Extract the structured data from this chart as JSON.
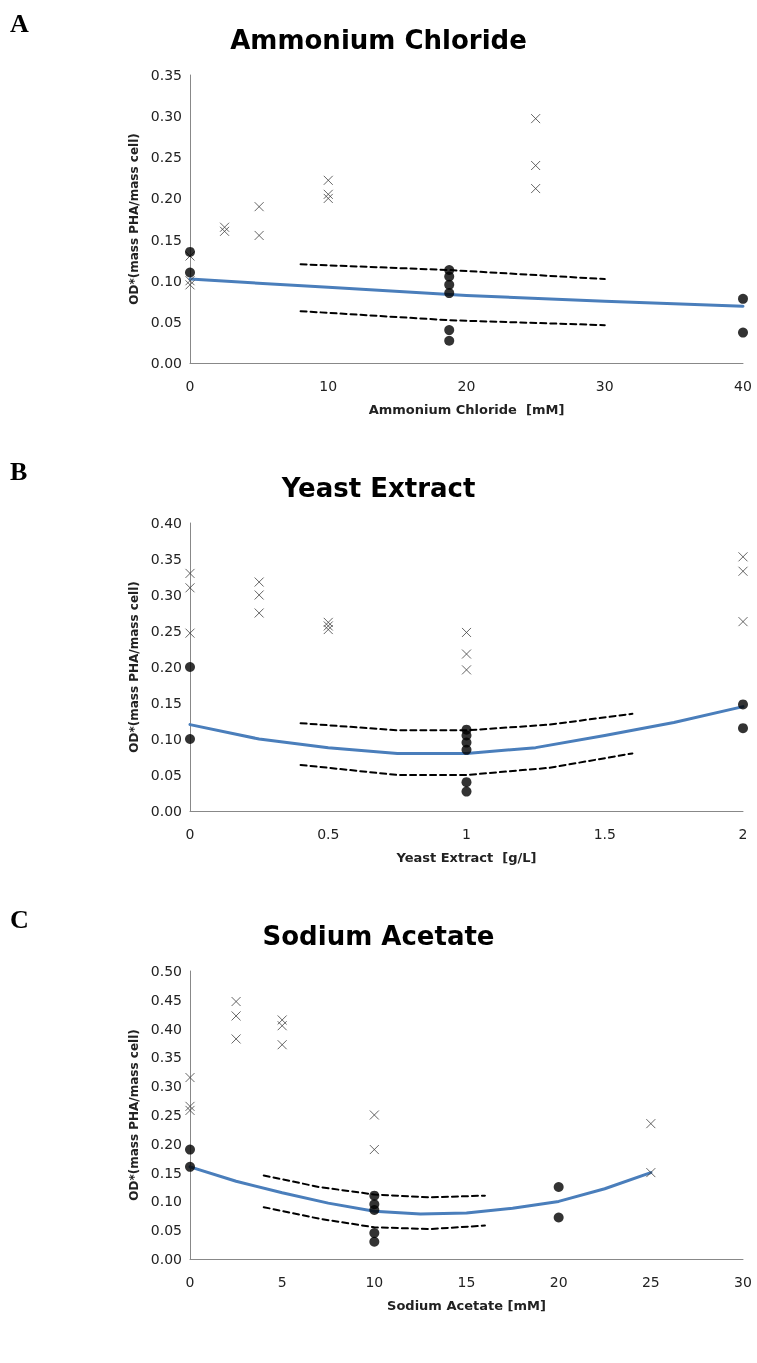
{
  "chart_data": [
    {
      "type": "scatter",
      "title": "Ammonium Chloride",
      "xlabel": "Ammonium Chloride  [mM]",
      "ylabel": "OD*(mass PHA/mass cell)",
      "annotations": [
        "A"
      ],
      "xlim": [
        0,
        40
      ],
      "xticks": [
        0,
        10,
        20,
        30,
        40
      ],
      "ylim": [
        0,
        0.35
      ],
      "yticks": [
        {
          "value": 0,
          "label": "0.00"
        },
        0.05,
        {
          "value": 0.1,
          "label": "0.10"
        },
        0.15,
        {
          "value": 0.2,
          "label": "0.20"
        },
        0.25,
        {
          "value": 0.3,
          "label": "0.30"
        },
        0.35
      ],
      "grid": false,
      "series": [
        {
          "marker": "cross",
          "color": "#404040",
          "x": [
            0,
            0,
            0,
            2.5,
            2.5,
            5,
            5,
            10,
            10,
            10,
            25,
            25,
            25
          ],
          "values": [
            0.1,
            0.095,
            0.13,
            0.165,
            0.16,
            0.19,
            0.155,
            0.222,
            0.205,
            0.2,
            0.297,
            0.24,
            0.212
          ]
        },
        {
          "marker": "circle",
          "color": "#000000",
          "x": [
            0,
            0,
            18.75,
            18.75,
            18.75,
            18.75,
            18.75,
            18.75,
            40,
            40
          ],
          "values": [
            0.135,
            0.11,
            0.113,
            0.105,
            0.095,
            0.085,
            0.04,
            0.027,
            0.078,
            0.037
          ]
        },
        {
          "type": "line",
          "line_style": "solid",
          "color": "#4a7ebb",
          "x": [
            0,
            10,
            20,
            30,
            40
          ],
          "values": [
            0.102,
            0.092,
            0.082,
            0.075,
            0.069
          ]
        },
        {
          "type": "line",
          "line_style": "dashed",
          "color": "#000000",
          "x": [
            8,
            18.75,
            30
          ],
          "values": [
            0.12,
            0.113,
            0.102
          ]
        },
        {
          "type": "line",
          "line_style": "dashed",
          "color": "#000000",
          "x": [
            8,
            18.75,
            30
          ],
          "values": [
            0.063,
            0.052,
            0.046
          ]
        }
      ]
    },
    {
      "type": "scatter",
      "title": "Yeast Extract",
      "xlabel": "Yeast Extract  [g/L]",
      "ylabel": "OD*(mass PHA/mass cell)",
      "annotations": [
        "B"
      ],
      "xlim": [
        0,
        2
      ],
      "xticks": [
        0,
        0.5,
        1,
        1.5,
        2
      ],
      "ylim": [
        0,
        0.4
      ],
      "yticks": [
        {
          "value": 0,
          "label": "0.00"
        },
        0.05,
        {
          "value": 0.1,
          "label": "0.10"
        },
        0.15,
        {
          "value": 0.2,
          "label": "0.20"
        },
        0.25,
        {
          "value": 0.3,
          "label": "0.30"
        },
        0.35,
        {
          "value": 0.4,
          "label": "0.40"
        }
      ],
      "grid": false,
      "series": [
        {
          "marker": "cross",
          "color": "#404040",
          "x": [
            0,
            0,
            0,
            0.25,
            0.25,
            0.25,
            0.5,
            0.5,
            0.5,
            1,
            1,
            1,
            2,
            2,
            2
          ],
          "values": [
            0.33,
            0.31,
            0.247,
            0.318,
            0.3,
            0.275,
            0.262,
            0.257,
            0.252,
            0.248,
            0.218,
            0.196,
            0.353,
            0.333,
            0.263
          ]
        },
        {
          "marker": "circle",
          "color": "#000000",
          "x": [
            0,
            0,
            1,
            1,
            1,
            1,
            1,
            1,
            2,
            2
          ],
          "values": [
            0.2,
            0.1,
            0.113,
            0.105,
            0.095,
            0.085,
            0.04,
            0.027,
            0.148,
            0.115
          ]
        },
        {
          "type": "line",
          "line_style": "solid",
          "color": "#4a7ebb",
          "x": [
            0,
            0.25,
            0.5,
            0.75,
            1,
            1.25,
            1.5,
            1.75,
            2
          ],
          "values": [
            0.12,
            0.1,
            0.088,
            0.08,
            0.08,
            0.088,
            0.105,
            0.123,
            0.145
          ]
        },
        {
          "type": "line",
          "line_style": "dashed",
          "color": "#000000",
          "x": [
            0.4,
            0.75,
            1,
            1.3,
            1.6
          ],
          "values": [
            0.122,
            0.112,
            0.112,
            0.12,
            0.135
          ]
        },
        {
          "type": "line",
          "line_style": "dashed",
          "color": "#000000",
          "x": [
            0.4,
            0.75,
            1,
            1.3,
            1.6
          ],
          "values": [
            0.064,
            0.05,
            0.05,
            0.06,
            0.08
          ]
        }
      ]
    },
    {
      "type": "scatter",
      "title": "Sodium Acetate",
      "xlabel": "Sodium Acetate [mM]",
      "ylabel": "OD*(mass PHA/mass cell)",
      "annotations": [
        "C"
      ],
      "xlim": [
        0,
        30
      ],
      "xticks": [
        0,
        5,
        10,
        15,
        20,
        25,
        30
      ],
      "ylim": [
        0,
        0.5
      ],
      "yticks": [
        {
          "value": 0,
          "label": "0.00"
        },
        0.05,
        {
          "value": 0.1,
          "label": "0.10"
        },
        0.15,
        {
          "value": 0.2,
          "label": "0.20"
        },
        0.25,
        {
          "value": 0.3,
          "label": "0.30"
        },
        0.35,
        {
          "value": 0.4,
          "label": "0.40"
        },
        0.45,
        {
          "value": 0.5,
          "label": "0.50"
        }
      ],
      "grid": false,
      "series": [
        {
          "marker": "cross",
          "color": "#404040",
          "x": [
            0,
            0,
            0,
            2.5,
            2.5,
            2.5,
            5,
            5,
            5,
            10,
            10,
            25,
            25
          ],
          "values": [
            0.315,
            0.265,
            0.258,
            0.447,
            0.422,
            0.382,
            0.415,
            0.405,
            0.372,
            0.25,
            0.19,
            0.235,
            0.15
          ]
        },
        {
          "marker": "circle",
          "color": "#000000",
          "x": [
            0,
            0,
            10,
            10,
            10,
            10,
            10,
            20,
            20
          ],
          "values": [
            0.19,
            0.16,
            0.11,
            0.095,
            0.085,
            0.045,
            0.03,
            0.125,
            0.072
          ]
        },
        {
          "type": "line",
          "line_style": "solid",
          "color": "#4a7ebb",
          "x": [
            0,
            2.5,
            5,
            7.5,
            10,
            12.5,
            15,
            17.5,
            20,
            22.5,
            25
          ],
          "values": [
            0.16,
            0.135,
            0.115,
            0.097,
            0.083,
            0.078,
            0.08,
            0.088,
            0.1,
            0.122,
            0.15
          ]
        },
        {
          "type": "line",
          "line_style": "dashed",
          "color": "#000000",
          "x": [
            4,
            7,
            10,
            13,
            16
          ],
          "values": [
            0.145,
            0.125,
            0.112,
            0.107,
            0.11
          ]
        },
        {
          "type": "line",
          "line_style": "dashed",
          "color": "#000000",
          "x": [
            4,
            7,
            10,
            13,
            16
          ],
          "values": [
            0.09,
            0.07,
            0.055,
            0.052,
            0.058
          ]
        }
      ]
    }
  ]
}
